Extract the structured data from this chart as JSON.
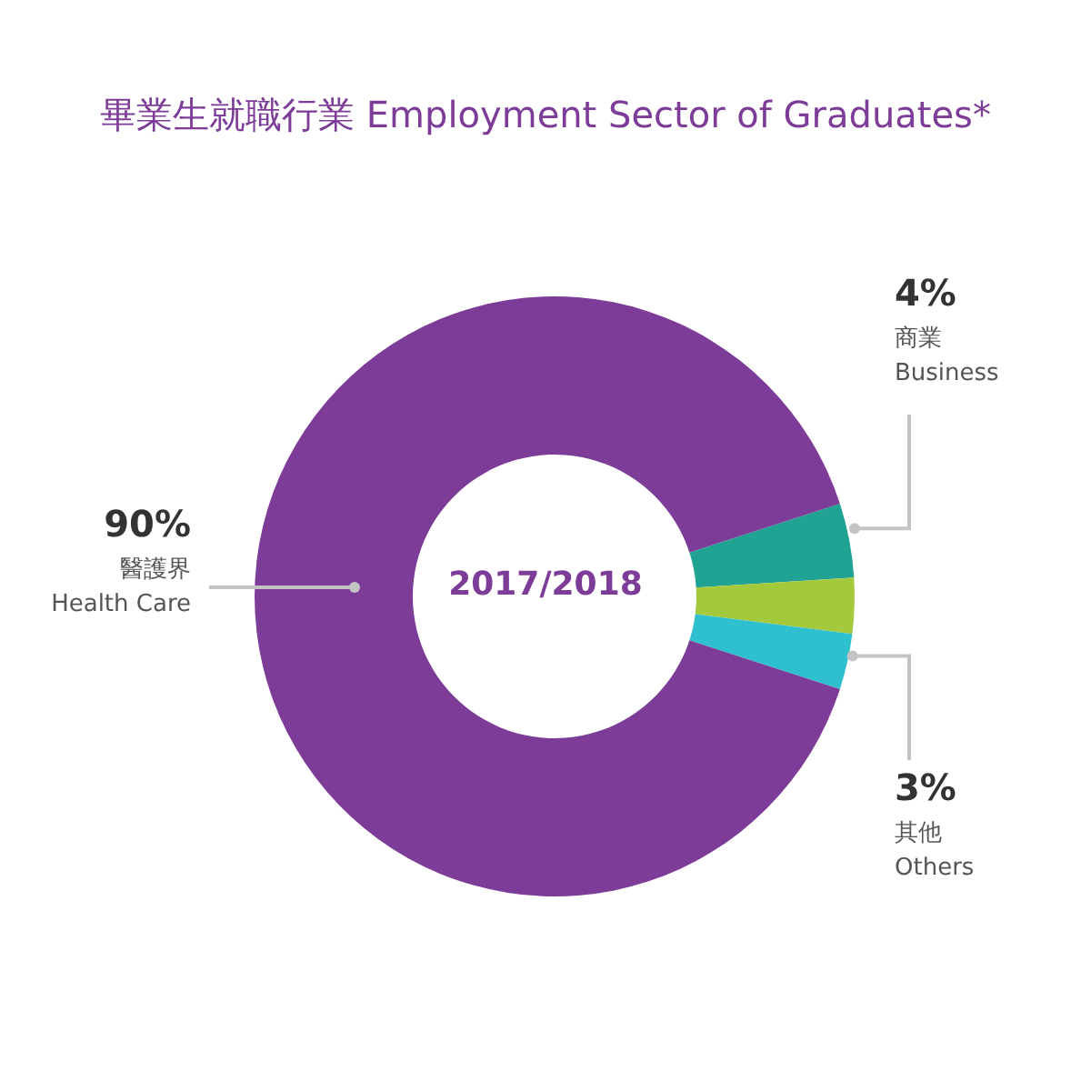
{
  "chart_data": {
    "type": "donut",
    "title": "畢業生就職行業  Employment Sector of Graduates*",
    "categories": [
      "商業\nBusiness",
      null,
      "其他\nOthers",
      "醫護界\nHealth Care"
    ],
    "values": [
      4,
      3,
      3,
      90
    ],
    "colors": [
      "#21a394",
      "#a5c93c",
      "#2fc0d0",
      "#7d3c98"
    ],
    "value_labels": [
      "4%",
      null,
      "3%",
      "90%"
    ],
    "annotations": [
      "2017/2018"
    ]
  }
}
